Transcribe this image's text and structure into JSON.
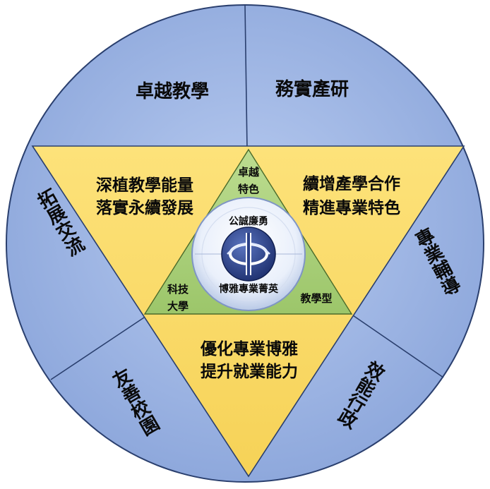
{
  "outer_ring": {
    "top_left": "卓越教學",
    "top_right": "務實產研",
    "left": "拓展交流",
    "right": "專業輔導",
    "bottom_left": "友善校園",
    "bottom_right": "效能行政"
  },
  "triangle_panels": {
    "left_line1": "深植教學能量",
    "left_line2": "落實永續發展",
    "right_line1": "續增產學合作",
    "right_line2": "精進專業特色",
    "bottom_line1": "優化專業博雅",
    "bottom_line2": "提升就業能力"
  },
  "inner_triangle": {
    "top_line1": "卓越",
    "top_line2": "特色",
    "left_line1": "科技",
    "left_line2": "大學",
    "right": "教學型"
  },
  "center": {
    "motto_top": "公誠廉勇",
    "motto_bottom": "博雅專業菁英",
    "emblem": "school-emblem"
  },
  "colors": {
    "ring_blue": "#9cb4e4",
    "ring_stroke": "#2a3f6e",
    "triangle_yellow": "#fbdc66",
    "inner_green": "#a9d07a",
    "emblem_blue": "#2a3f86"
  }
}
